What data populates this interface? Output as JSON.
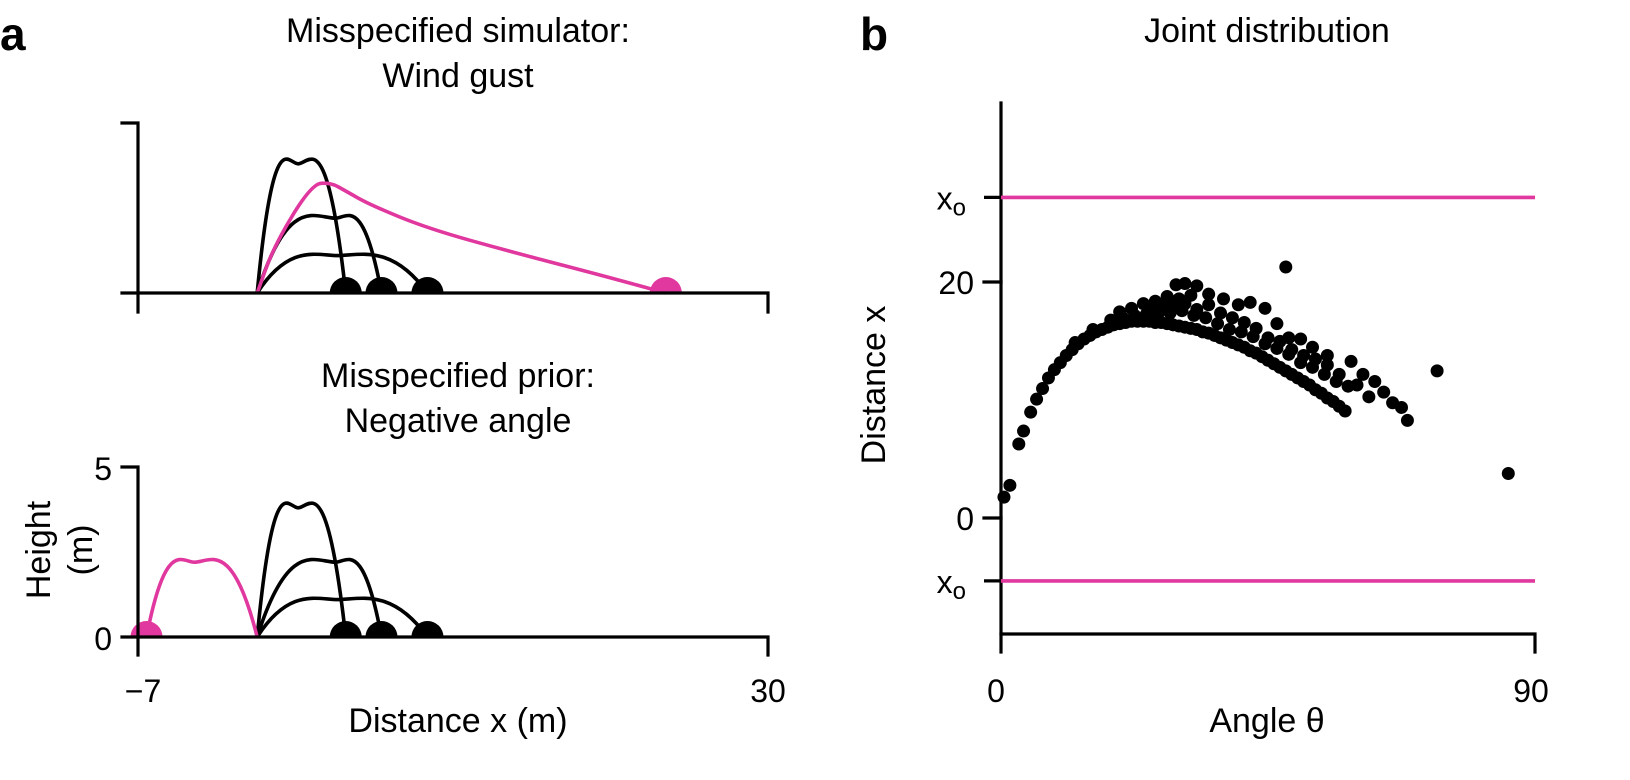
{
  "colors": {
    "black": "#000000",
    "magenta": "#E0389E"
  },
  "panel_a": {
    "letter": "a",
    "top_title_line1": "Misspecified simulator:",
    "top_title_line2": "Wind gust",
    "bottom_title_line1": "Misspecified prior:",
    "bottom_title_line2": "Negative angle",
    "ylabel_line1": "Height",
    "ylabel_line2": "(m)",
    "xlabel": "Distance x (m)"
  },
  "panel_b": {
    "letter": "b",
    "title": "Joint distribution",
    "xlabel": "Angle θ",
    "ylabel": "Distance x",
    "xo_label": "x",
    "xo_sub": "o"
  },
  "chart_data": [
    {
      "type": "line",
      "panel": "a-top",
      "title": "Misspecified simulator: Wind gust",
      "xlim": [
        -7,
        30
      ],
      "ylim": [
        0,
        5
      ],
      "series": [
        {
          "color": "black",
          "x": [
            0,
            2.4,
            5.2
          ],
          "y": [
            0,
            3.8,
            0
          ]
        },
        {
          "color": "black",
          "x": [
            0,
            4.6,
            7.3
          ],
          "y": [
            0,
            2.2,
            0
          ]
        },
        {
          "color": "black",
          "x": [
            0,
            4.7,
            10.0
          ],
          "y": [
            0,
            1.1,
            0
          ]
        },
        {
          "color": "magenta",
          "x": [
            0,
            1.0,
            3.2,
            4.3,
            5.2,
            6.6,
            10.0,
            15.0,
            20.0,
            24.0
          ],
          "y": [
            0,
            1.4,
            3.2,
            3.25,
            3.0,
            2.6,
            1.9,
            1.2,
            0.55,
            0
          ]
        }
      ],
      "landing_points": [
        {
          "color": "black",
          "x": 5.2
        },
        {
          "color": "black",
          "x": 7.3
        },
        {
          "color": "black",
          "x": 10.0
        },
        {
          "color": "magenta",
          "x": 24.0
        }
      ]
    },
    {
      "type": "line",
      "panel": "a-bottom",
      "title": "Misspecified prior: Negative angle",
      "xlabel": "Distance x (m)",
      "ylabel": "Height (m)",
      "xlim": [
        -7,
        30
      ],
      "ylim": [
        0,
        5
      ],
      "xticks": [
        -7,
        30
      ],
      "xtick_labels": [
        "−7",
        "30"
      ],
      "yticks": [
        0,
        5
      ],
      "series": [
        {
          "color": "black",
          "x": [
            0,
            2.4,
            5.2
          ],
          "y": [
            0,
            3.8,
            0
          ]
        },
        {
          "color": "black",
          "x": [
            0,
            4.6,
            7.3
          ],
          "y": [
            0,
            2.2,
            0
          ]
        },
        {
          "color": "black",
          "x": [
            0,
            4.7,
            10.0
          ],
          "y": [
            0,
            1.1,
            0
          ]
        },
        {
          "color": "magenta",
          "x": [
            0,
            -3.7,
            -6.5
          ],
          "y": [
            0,
            2.2,
            0
          ]
        }
      ],
      "landing_points": [
        {
          "color": "black",
          "x": 5.2
        },
        {
          "color": "black",
          "x": 7.3
        },
        {
          "color": "black",
          "x": 10.0
        },
        {
          "color": "magenta",
          "x": -6.5
        }
      ]
    },
    {
      "type": "scatter",
      "panel": "b",
      "title": "Joint distribution",
      "xlabel": "Angle θ",
      "ylabel": "Distance x",
      "xlim": [
        0,
        90
      ],
      "ylim": [
        -10,
        35
      ],
      "xticks": [
        0,
        90
      ],
      "yticks": [
        0,
        20
      ],
      "hlines": [
        {
          "y": 27,
          "color": "magenta",
          "label": "xo"
        },
        {
          "y": -5.5,
          "color": "magenta",
          "label": "xo"
        }
      ],
      "points": [
        [
          0.5,
          1.6
        ],
        [
          1.5,
          2.6
        ],
        [
          3.0,
          6.1
        ],
        [
          3.8,
          7.2
        ],
        [
          5.0,
          8.8
        ],
        [
          6.0,
          9.9
        ],
        [
          7.0,
          10.8
        ],
        [
          8.0,
          11.7
        ],
        [
          9.0,
          12.4
        ],
        [
          10.0,
          13.0
        ],
        [
          11.0,
          13.6
        ],
        [
          12.0,
          14.1
        ],
        [
          13.0,
          14.6
        ],
        [
          14.0,
          15.0
        ],
        [
          15.0,
          15.3
        ],
        [
          16.0,
          15.6
        ],
        [
          17.0,
          15.8
        ],
        [
          18.0,
          16.0
        ],
        [
          19.0,
          16.2
        ],
        [
          20.0,
          16.3
        ],
        [
          21.0,
          16.4
        ],
        [
          22.0,
          16.5
        ],
        [
          23.0,
          16.5
        ],
        [
          24.0,
          16.5
        ],
        [
          25.0,
          16.5
        ],
        [
          26.0,
          16.4
        ],
        [
          27.0,
          16.4
        ],
        [
          28.0,
          16.3
        ],
        [
          29.0,
          16.2
        ],
        [
          30.0,
          16.1
        ],
        [
          31.0,
          16.0
        ],
        [
          32.0,
          15.9
        ],
        [
          33.0,
          15.8
        ],
        [
          34.0,
          15.6
        ],
        [
          35.0,
          15.5
        ],
        [
          36.0,
          15.3
        ],
        [
          37.0,
          15.1
        ],
        [
          38.0,
          14.9
        ],
        [
          39.0,
          14.7
        ],
        [
          40.0,
          14.5
        ],
        [
          41.0,
          14.3
        ],
        [
          42.0,
          14.0
        ],
        [
          43.0,
          13.8
        ],
        [
          44.0,
          13.5
        ],
        [
          45.0,
          13.2
        ],
        [
          46.0,
          12.9
        ],
        [
          47.0,
          12.6
        ],
        [
          48.0,
          12.3
        ],
        [
          49.0,
          12.0
        ],
        [
          50.0,
          11.7
        ],
        [
          51.0,
          11.4
        ],
        [
          52.0,
          11.1
        ],
        [
          53.0,
          10.7
        ],
        [
          54.0,
          10.4
        ],
        [
          55.0,
          10.0
        ],
        [
          56.0,
          9.7
        ],
        [
          57.0,
          9.3
        ],
        [
          58.0,
          8.9
        ],
        [
          12.5,
          14.7
        ],
        [
          15.5,
          15.8
        ],
        [
          18.5,
          16.6
        ],
        [
          20.5,
          16.8
        ],
        [
          22.5,
          17.0
        ],
        [
          24.5,
          17.1
        ],
        [
          26.5,
          17.2
        ],
        [
          28.5,
          17.2
        ],
        [
          30.5,
          17.4
        ],
        [
          32.5,
          17.0
        ],
        [
          34.5,
          16.8
        ],
        [
          36.5,
          16.3
        ],
        [
          38.5,
          15.8
        ],
        [
          40.5,
          15.6
        ],
        [
          42.5,
          15.2
        ],
        [
          44.5,
          14.6
        ],
        [
          46.5,
          14.2
        ],
        [
          48.5,
          13.7
        ],
        [
          50.5,
          13.0
        ],
        [
          52.5,
          12.6
        ],
        [
          54.5,
          12.0
        ],
        [
          56.5,
          11.4
        ],
        [
          58.5,
          11.0
        ],
        [
          20.0,
          17.3
        ],
        [
          22.0,
          17.6
        ],
        [
          24.0,
          18.0
        ],
        [
          25.0,
          17.6
        ],
        [
          26.0,
          18.2
        ],
        [
          27.0,
          17.8
        ],
        [
          28.0,
          18.6
        ],
        [
          29.0,
          17.9
        ],
        [
          30.0,
          18.4
        ],
        [
          31.0,
          18.0
        ],
        [
          32.0,
          18.7
        ],
        [
          33.0,
          17.5
        ],
        [
          35.0,
          17.9
        ],
        [
          37.0,
          17.2
        ],
        [
          39.0,
          16.8
        ],
        [
          41.0,
          16.4
        ],
        [
          43.0,
          15.9
        ],
        [
          45.0,
          15.1
        ],
        [
          47.0,
          14.8
        ],
        [
          49.0,
          14.1
        ],
        [
          51.0,
          13.6
        ],
        [
          53.0,
          13.3
        ],
        [
          55.0,
          12.8
        ],
        [
          57.0,
          12.0
        ],
        [
          29.5,
          19.6
        ],
        [
          31.0,
          19.7
        ],
        [
          33.0,
          19.5
        ],
        [
          35.0,
          18.8
        ],
        [
          37.5,
          18.4
        ],
        [
          40.0,
          17.9
        ],
        [
          42.0,
          18.1
        ],
        [
          44.5,
          17.6
        ],
        [
          46.5,
          16.3
        ],
        [
          48.5,
          15.1
        ],
        [
          50.5,
          15.0
        ],
        [
          52.5,
          14.3
        ],
        [
          55.0,
          13.6
        ],
        [
          59.0,
          13.1
        ],
        [
          61.0,
          12.0
        ],
        [
          63.0,
          11.4
        ],
        [
          64.5,
          10.5
        ],
        [
          66.0,
          9.6
        ],
        [
          67.5,
          9.2
        ],
        [
          68.5,
          8.1
        ],
        [
          60.0,
          11.1
        ],
        [
          62.0,
          10.1
        ],
        [
          48.0,
          21.1
        ],
        [
          73.5,
          12.3
        ],
        [
          85.5,
          3.6
        ]
      ]
    }
  ]
}
